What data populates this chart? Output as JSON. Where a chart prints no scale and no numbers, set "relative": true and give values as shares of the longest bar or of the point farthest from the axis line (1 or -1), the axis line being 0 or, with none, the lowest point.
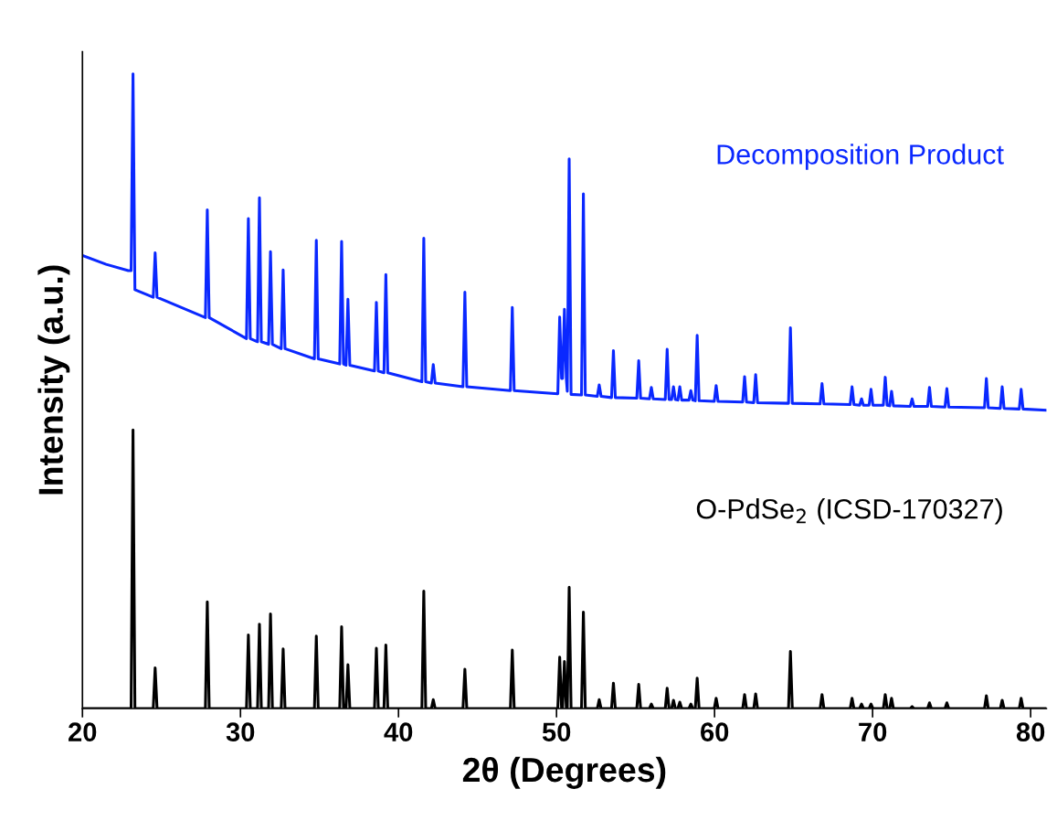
{
  "chart_data": {
    "type": "line",
    "xlabel": "2θ (Degrees)",
    "ylabel": "Intensity (a.u.)",
    "relative": true,
    "line_style": "solid",
    "xlim": [
      20,
      81
    ],
    "xticks": [
      20,
      30,
      40,
      50,
      60,
      70,
      80
    ],
    "x": [
      20,
      21.5,
      22.9,
      23.08,
      23.2,
      23.32,
      24.48,
      24.6,
      24.72,
      27.78,
      27.9,
      28.02,
      30.38,
      30.5,
      30.62,
      31.08,
      31.2,
      31.32,
      31.78,
      31.9,
      32.02,
      32.58,
      32.7,
      32.82,
      34.68,
      34.8,
      34.92,
      36.28,
      36.4,
      36.52,
      36.68,
      36.8,
      36.92,
      38.48,
      38.6,
      38.72,
      39.08,
      39.2,
      39.32,
      41.48,
      41.6,
      41.72,
      42.08,
      42.2,
      42.32,
      44.08,
      44.2,
      44.32,
      47.08,
      47.2,
      47.32,
      50.08,
      50.2,
      50.32,
      50.38,
      50.5,
      50.62,
      50.68,
      50.8,
      50.92,
      51.58,
      51.7,
      51.82,
      52.58,
      52.7,
      52.82,
      53.48,
      53.6,
      53.72,
      55.08,
      55.2,
      55.32,
      55.88,
      56.0,
      56.12,
      56.88,
      57.0,
      57.12,
      57.28,
      57.4,
      57.52,
      57.68,
      57.8,
      57.92,
      58.38,
      58.5,
      58.62,
      58.78,
      58.9,
      59.02,
      59.98,
      60.1,
      60.22,
      61.78,
      61.9,
      62.02,
      62.48,
      62.6,
      62.72,
      64.68,
      64.8,
      64.92,
      66.68,
      66.8,
      66.92,
      68.58,
      68.7,
      68.82,
      69.18,
      69.3,
      69.42,
      69.78,
      69.9,
      70.02,
      70.68,
      70.8,
      70.92,
      71.08,
      71.2,
      71.32,
      72.38,
      72.5,
      72.62,
      73.48,
      73.6,
      73.72,
      74.58,
      74.7,
      74.82,
      77.08,
      77.2,
      77.32,
      78.08,
      78.2,
      78.32,
      79.28,
      79.4,
      79.52,
      81
    ],
    "series": [
      {
        "name": "Decomposition Product",
        "color": "#0a28ff",
        "values": [
          0.714,
          0.7,
          0.69,
          0.69,
          1.0,
          0.66,
          0.648,
          0.718,
          0.648,
          0.616,
          0.786,
          0.616,
          0.583,
          0.772,
          0.583,
          0.578,
          0.805,
          0.578,
          0.574,
          0.72,
          0.574,
          0.567,
          0.691,
          0.567,
          0.551,
          0.738,
          0.551,
          0.543,
          0.736,
          0.543,
          0.541,
          0.645,
          0.541,
          0.532,
          0.64,
          0.532,
          0.529,
          0.684,
          0.529,
          0.515,
          0.741,
          0.515,
          0.513,
          0.542,
          0.513,
          0.507,
          0.656,
          0.507,
          0.501,
          0.632,
          0.501,
          0.496,
          0.617,
          0.52,
          0.52,
          0.629,
          0.52,
          0.5,
          0.866,
          0.495,
          0.494,
          0.811,
          0.494,
          0.492,
          0.51,
          0.492,
          0.49,
          0.564,
          0.49,
          0.489,
          0.548,
          0.489,
          0.488,
          0.506,
          0.488,
          0.487,
          0.566,
          0.487,
          0.487,
          0.507,
          0.487,
          0.486,
          0.507,
          0.486,
          0.486,
          0.501,
          0.486,
          0.485,
          0.588,
          0.485,
          0.484,
          0.509,
          0.484,
          0.483,
          0.523,
          0.483,
          0.482,
          0.526,
          0.482,
          0.481,
          0.6,
          0.481,
          0.48,
          0.512,
          0.48,
          0.479,
          0.507,
          0.479,
          0.478,
          0.488,
          0.478,
          0.478,
          0.503,
          0.478,
          0.478,
          0.522,
          0.478,
          0.477,
          0.5,
          0.477,
          0.476,
          0.488,
          0.476,
          0.476,
          0.506,
          0.476,
          0.475,
          0.504,
          0.475,
          0.474,
          0.52,
          0.474,
          0.473,
          0.507,
          0.473,
          0.472,
          0.503,
          0.472,
          0.47
        ]
      },
      {
        "name": "O-PdSe$_{2}$ (ICSD-170327)",
        "color": "#000000",
        "values": [
          0,
          0,
          0,
          0,
          0.439,
          0,
          0,
          0.064,
          0,
          0,
          0.168,
          0,
          0,
          0.116,
          0,
          0,
          0.133,
          0,
          0,
          0.149,
          0,
          0,
          0.094,
          0,
          0,
          0.114,
          0,
          0,
          0.129,
          0,
          0,
          0.069,
          0,
          0,
          0.095,
          0,
          0,
          0.1,
          0,
          0,
          0.185,
          0,
          0,
          0.014,
          0,
          0,
          0.062,
          0,
          0,
          0.092,
          0,
          0,
          0.081,
          0,
          0,
          0.074,
          0,
          0,
          0.191,
          0,
          0,
          0.152,
          0,
          0,
          0.014,
          0,
          0,
          0.04,
          0,
          0,
          0.038,
          0,
          0,
          0.007,
          0,
          0,
          0.032,
          0,
          0,
          0.013,
          0,
          0,
          0.01,
          0,
          0,
          0.007,
          0,
          0,
          0.048,
          0,
          0,
          0.016,
          0,
          0,
          0.022,
          0,
          0,
          0.023,
          0,
          0,
          0.09,
          0,
          0,
          0.022,
          0,
          0,
          0.016,
          0,
          0,
          0.007,
          0,
          0,
          0.007,
          0,
          0,
          0.022,
          0,
          0,
          0.016,
          0,
          0,
          0.003,
          0,
          0,
          0.009,
          0,
          0,
          0.009,
          0,
          0,
          0.02,
          0,
          0,
          0.013,
          0,
          0,
          0.016,
          0,
          0
        ]
      }
    ]
  }
}
